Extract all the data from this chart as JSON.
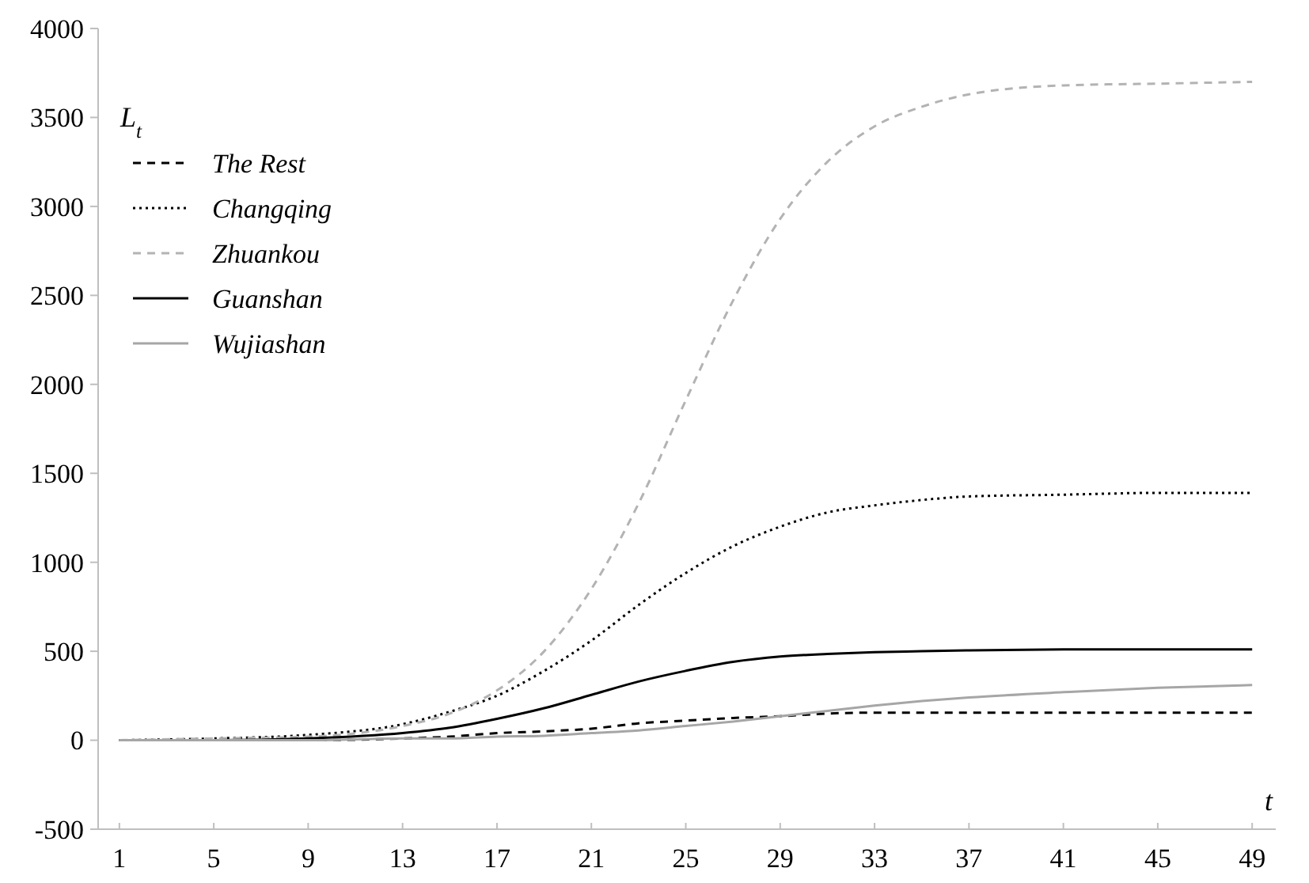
{
  "chart_data": {
    "type": "line",
    "xlabel": "t",
    "ylabel": "L$_{t}$",
    "x": [
      1,
      5,
      9,
      13,
      15,
      17,
      19,
      21,
      23,
      25,
      27,
      29,
      31,
      33,
      35,
      37,
      41,
      45,
      49
    ],
    "xlim": [
      0.1,
      50
    ],
    "xticks": [
      1,
      5,
      9,
      13,
      17,
      21,
      25,
      29,
      33,
      37,
      41,
      45,
      49
    ],
    "ylim": [
      -500,
      4000
    ],
    "yticks": [
      -500,
      0,
      500,
      1000,
      1500,
      2000,
      2500,
      3000,
      3500,
      4000
    ],
    "grid": false,
    "legend": "top left",
    "marker": "none",
    "series": [
      {
        "name": "The Rest",
        "color": "#000000",
        "line_style": "dashed",
        "values": [
          0,
          0,
          0,
          10,
          20,
          40,
          50,
          65,
          95,
          110,
          125,
          135,
          150,
          155,
          155,
          155,
          155,
          155,
          155
        ]
      },
      {
        "name": "Changqing",
        "color": "#000000",
        "line_style": "dotted",
        "values": [
          0,
          10,
          30,
          90,
          160,
          250,
          390,
          560,
          760,
          940,
          1090,
          1200,
          1280,
          1320,
          1350,
          1370,
          1380,
          1390,
          1390
        ]
      },
      {
        "name": "Zhuankou",
        "color": "#b3b3b3",
        "line_style": "dashed",
        "values": [
          0,
          10,
          20,
          80,
          150,
          280,
          500,
          850,
          1330,
          1910,
          2470,
          2930,
          3250,
          3450,
          3560,
          3630,
          3680,
          3690,
          3700
        ]
      },
      {
        "name": "Guanshan",
        "color": "#000000",
        "line_style": "solid",
        "values": [
          0,
          0,
          10,
          40,
          70,
          120,
          180,
          255,
          330,
          390,
          440,
          470,
          485,
          495,
          500,
          505,
          510,
          510,
          510
        ]
      },
      {
        "name": "Wujiashan",
        "color": "#a6a6a6",
        "line_style": "solid",
        "values": [
          0,
          0,
          0,
          10,
          10,
          20,
          25,
          40,
          55,
          80,
          105,
          135,
          165,
          195,
          220,
          240,
          270,
          295,
          310
        ]
      }
    ]
  }
}
